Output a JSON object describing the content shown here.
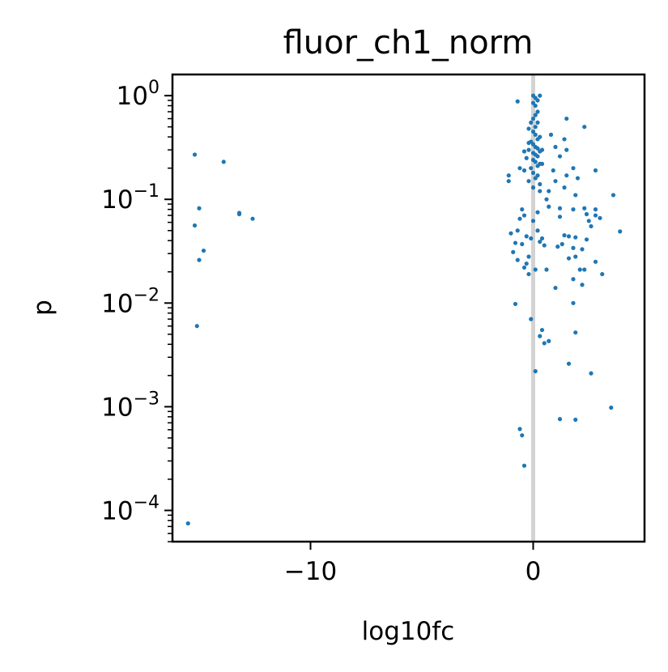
{
  "chart_data": {
    "type": "scatter",
    "title": "fluor_ch1_norm",
    "xlabel": "log10fc",
    "ylabel": "p",
    "y_scale": "log",
    "xlim": [
      -16.2,
      5.0
    ],
    "ylim": [
      5e-05,
      1.6
    ],
    "x_ticks": [
      -10,
      0
    ],
    "x_tick_labels": [
      "−10",
      "0"
    ],
    "y_ticks": [
      {
        "value": 1,
        "base": "10",
        "exp": "0"
      },
      {
        "value": 0.1,
        "base": "10",
        "exp": "−1"
      },
      {
        "value": 0.01,
        "base": "10",
        "exp": "−2"
      },
      {
        "value": 0.001,
        "base": "10",
        "exp": "−3"
      },
      {
        "value": 0.0001,
        "base": "10",
        "exp": "−4"
      }
    ],
    "reference_line": {
      "x": 0,
      "color": "#d3d3d3"
    },
    "grid": false,
    "point_color": "#1f77b4",
    "points": [
      [
        -15.2,
        0.27
      ],
      [
        -13.9,
        0.23
      ],
      [
        -15.0,
        0.082
      ],
      [
        -15.2,
        0.056
      ],
      [
        -14.8,
        0.032
      ],
      [
        -15.0,
        0.026
      ],
      [
        -13.2,
        0.072
      ],
      [
        -13.2,
        0.074
      ],
      [
        -12.6,
        0.065
      ],
      [
        -15.1,
        0.006
      ],
      [
        -15.5,
        7.5e-05
      ],
      [
        -0.7,
        0.88
      ],
      [
        0.3,
        1.0
      ],
      [
        0.0,
        1.0
      ],
      [
        0.1,
        0.95
      ],
      [
        0.2,
        0.9
      ],
      [
        0.0,
        0.85
      ],
      [
        0.1,
        0.8
      ],
      [
        0.2,
        0.7
      ],
      [
        0.1,
        0.65
      ],
      [
        0.0,
        0.6
      ],
      [
        -0.1,
        0.55
      ],
      [
        0.2,
        0.55
      ],
      [
        0.1,
        0.5
      ],
      [
        -0.2,
        0.48
      ],
      [
        0.0,
        0.45
      ],
      [
        0.1,
        0.42
      ],
      [
        0.3,
        0.4
      ],
      [
        0.2,
        0.38
      ],
      [
        -0.1,
        0.36
      ],
      [
        0.0,
        0.34
      ],
      [
        0.1,
        0.32
      ],
      [
        0.2,
        0.31
      ],
      [
        -0.2,
        0.3
      ],
      [
        0.3,
        0.29
      ],
      [
        0.0,
        0.28
      ],
      [
        0.1,
        0.27
      ],
      [
        0.2,
        0.26
      ],
      [
        -0.3,
        0.25
      ],
      [
        0.0,
        0.24
      ],
      [
        0.1,
        0.23
      ],
      [
        0.3,
        0.22
      ],
      [
        0.2,
        0.21
      ],
      [
        -0.1,
        0.2
      ],
      [
        -0.6,
        0.2
      ],
      [
        -0.4,
        0.19
      ],
      [
        0.0,
        0.18
      ],
      [
        0.2,
        0.17
      ],
      [
        0.1,
        0.16
      ],
      [
        -0.2,
        0.15
      ],
      [
        0.3,
        0.14
      ],
      [
        0.0,
        0.13
      ],
      [
        -1.1,
        0.17
      ],
      [
        -1.1,
        0.15
      ],
      [
        -0.4,
        0.29
      ],
      [
        -0.2,
        0.35
      ],
      [
        0.4,
        0.3
      ],
      [
        0.4,
        0.22
      ],
      [
        0.8,
        0.42
      ],
      [
        1.0,
        0.32
      ],
      [
        1.5,
        0.6
      ],
      [
        1.4,
        0.38
      ],
      [
        2.3,
        0.5
      ],
      [
        1.5,
        0.3
      ],
      [
        1.2,
        0.26
      ],
      [
        1.8,
        0.2
      ],
      [
        0.9,
        0.19
      ],
      [
        1.0,
        0.15
      ],
      [
        1.4,
        0.13
      ],
      [
        1.5,
        0.17
      ],
      [
        2.0,
        0.16
      ],
      [
        2.8,
        0.19
      ],
      [
        0.7,
        0.12
      ],
      [
        0.3,
        0.12
      ],
      [
        0.6,
        0.1
      ],
      [
        1.9,
        0.11
      ],
      [
        3.6,
        0.11
      ],
      [
        0.7,
        0.085
      ],
      [
        1.2,
        0.082
      ],
      [
        1.8,
        0.08
      ],
      [
        2.3,
        0.082
      ],
      [
        2.8,
        0.08
      ],
      [
        2.4,
        0.072
      ],
      [
        2.8,
        0.07
      ],
      [
        3.0,
        0.066
      ],
      [
        -0.5,
        0.08
      ],
      [
        -0.4,
        0.07
      ],
      [
        0.2,
        0.075
      ],
      [
        1.2,
        0.068
      ],
      [
        -0.6,
        0.065
      ],
      [
        0.0,
        0.062
      ],
      [
        2.5,
        0.062
      ],
      [
        2.6,
        0.055
      ],
      [
        0.2,
        0.05
      ],
      [
        1.4,
        0.045
      ],
      [
        -0.7,
        0.05
      ],
      [
        3.9,
        0.049
      ],
      [
        -1.0,
        0.047
      ],
      [
        -0.3,
        0.044
      ],
      [
        -0.1,
        0.042
      ],
      [
        0.4,
        0.042
      ],
      [
        1.6,
        0.044
      ],
      [
        1.9,
        0.043
      ],
      [
        2.4,
        0.041
      ],
      [
        0.3,
        0.039
      ],
      [
        -0.8,
        0.038
      ],
      [
        -0.5,
        0.037
      ],
      [
        0.5,
        0.036
      ],
      [
        1.1,
        0.035
      ],
      [
        1.8,
        0.034
      ],
      [
        2.2,
        0.033
      ],
      [
        1.3,
        0.037
      ],
      [
        -0.9,
        0.031
      ],
      [
        -0.2,
        0.028
      ],
      [
        -0.7,
        0.026
      ],
      [
        1.9,
        0.028
      ],
      [
        1.6,
        0.027
      ],
      [
        2.1,
        0.021
      ],
      [
        2.3,
        0.021
      ],
      [
        2.8,
        0.025
      ],
      [
        3.1,
        0.019
      ],
      [
        -0.3,
        0.024
      ],
      [
        -0.4,
        0.022
      ],
      [
        0.1,
        0.021
      ],
      [
        0.6,
        0.021
      ],
      [
        -0.2,
        0.019
      ],
      [
        1.8,
        0.017
      ],
      [
        2.2,
        0.015
      ],
      [
        1.0,
        0.014
      ],
      [
        1.8,
        0.01
      ],
      [
        -0.8,
        0.0098
      ],
      [
        0.4,
        0.0055
      ],
      [
        0.3,
        0.0048
      ],
      [
        0.7,
        0.0043
      ],
      [
        0.5,
        0.0041
      ],
      [
        1.9,
        0.0052
      ],
      [
        -0.1,
        0.007
      ],
      [
        1.6,
        0.0026
      ],
      [
        2.6,
        0.0021
      ],
      [
        0.1,
        0.0022
      ],
      [
        3.5,
        0.00098
      ],
      [
        1.2,
        0.00076
      ],
      [
        1.9,
        0.00075
      ],
      [
        -0.6,
        0.00061
      ],
      [
        -0.5,
        0.00053
      ],
      [
        -0.4,
        0.00027
      ]
    ]
  }
}
